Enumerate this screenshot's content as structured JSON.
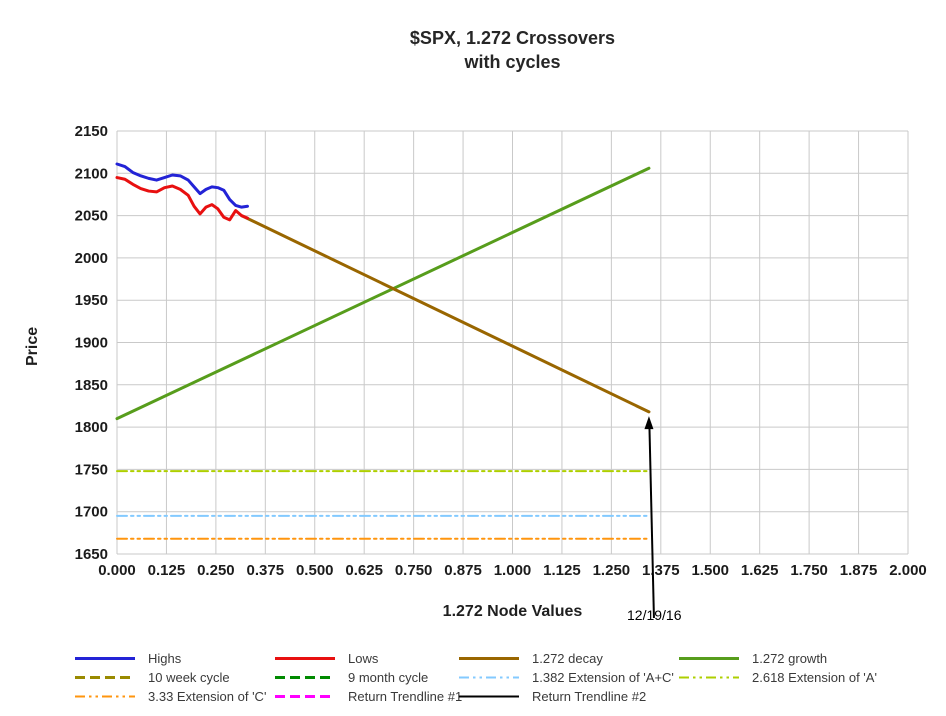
{
  "chart": {
    "title_lines": [
      "$SPX, 1.272 Crossovers",
      "with cycles"
    ],
    "x_axis_title": "1.272 Node Values",
    "y_axis_title": "Price"
  },
  "chart_data": {
    "type": "line",
    "title": "$SPX, 1.272 Crossovers with cycles",
    "xlabel": "1.272 Node Values",
    "ylabel": "Price",
    "xlim": [
      0.0,
      2.0
    ],
    "ylim": [
      1650,
      2150
    ],
    "grid": true,
    "legend_position": "bottom",
    "x_ticks": [
      "0.000",
      "0.125",
      "0.250",
      "0.375",
      "0.500",
      "0.625",
      "0.750",
      "0.875",
      "1.000",
      "1.125",
      "1.250",
      "1.375",
      "1.500",
      "1.625",
      "1.750",
      "1.875",
      "2.000"
    ],
    "y_ticks": [
      1650,
      1700,
      1750,
      1800,
      1850,
      1900,
      1950,
      2000,
      2050,
      2100,
      2150
    ],
    "series": [
      {
        "name": "Highs",
        "color": "#2323d6",
        "width": 3,
        "dash": "solid",
        "points": [
          [
            0.0,
            2111
          ],
          [
            0.02,
            2108
          ],
          [
            0.04,
            2101
          ],
          [
            0.06,
            2097
          ],
          [
            0.08,
            2094
          ],
          [
            0.1,
            2092
          ],
          [
            0.12,
            2095
          ],
          [
            0.14,
            2098
          ],
          [
            0.16,
            2097
          ],
          [
            0.18,
            2092
          ],
          [
            0.195,
            2084
          ],
          [
            0.21,
            2076
          ],
          [
            0.225,
            2081
          ],
          [
            0.24,
            2084
          ],
          [
            0.255,
            2083
          ],
          [
            0.27,
            2080
          ],
          [
            0.285,
            2069
          ],
          [
            0.3,
            2062
          ],
          [
            0.315,
            2060
          ],
          [
            0.33,
            2061
          ]
        ]
      },
      {
        "name": "Lows",
        "color": "#e81010",
        "width": 3,
        "dash": "solid",
        "points": [
          [
            0.0,
            2095
          ],
          [
            0.02,
            2093
          ],
          [
            0.04,
            2087
          ],
          [
            0.06,
            2082
          ],
          [
            0.08,
            2079
          ],
          [
            0.1,
            2078
          ],
          [
            0.12,
            2083
          ],
          [
            0.14,
            2085
          ],
          [
            0.16,
            2081
          ],
          [
            0.18,
            2074
          ],
          [
            0.195,
            2061
          ],
          [
            0.21,
            2052
          ],
          [
            0.225,
            2060
          ],
          [
            0.24,
            2063
          ],
          [
            0.255,
            2058
          ],
          [
            0.27,
            2048
          ],
          [
            0.285,
            2045
          ],
          [
            0.3,
            2056
          ],
          [
            0.315,
            2050
          ],
          [
            0.33,
            2047
          ]
        ]
      },
      {
        "name": "1.272 decay",
        "color": "#996600",
        "width": 3,
        "dash": "solid",
        "points": [
          [
            0.315,
            2050
          ],
          [
            1.345,
            1818
          ]
        ]
      },
      {
        "name": "1.272 growth",
        "color": "#579d1c",
        "width": 3,
        "dash": "solid",
        "points": [
          [
            0.0,
            1810
          ],
          [
            1.345,
            2106
          ]
        ]
      },
      {
        "name": "10 week cycle",
        "color": "#998a00",
        "width": 3,
        "dash": "dashed",
        "points": []
      },
      {
        "name": "9 month cycle",
        "color": "#008a00",
        "width": 3,
        "dash": "dashed",
        "points": []
      },
      {
        "name": "1.382 Extension of 'A+C'",
        "color": "#83caff",
        "width": 2,
        "dash": "dash-dot-dot",
        "points": [
          [
            0.0,
            1695
          ],
          [
            1.345,
            1695
          ]
        ]
      },
      {
        "name": "2.618 Extension of 'A'",
        "color": "#aecf00",
        "width": 2,
        "dash": "dash-dot-dot",
        "points": [
          [
            0.0,
            1748
          ],
          [
            1.345,
            1748
          ]
        ]
      },
      {
        "name": "3.33 Extension of 'C'",
        "color": "#ff950e",
        "width": 2,
        "dash": "dash-dot-dot",
        "points": [
          [
            0.0,
            1668
          ],
          [
            1.345,
            1668
          ]
        ]
      },
      {
        "name": "Return Trendline #1",
        "color": "#ff00ff",
        "width": 3,
        "dash": "dashed",
        "points": []
      },
      {
        "name": "Return Trendline #2",
        "color": "#000000",
        "width": 2,
        "dash": "solid",
        "points": []
      }
    ],
    "annotation": {
      "text": "12/19/16",
      "x": 1.345,
      "y": 1813
    }
  },
  "style": {
    "grid_color": "#c9c9c9",
    "tick_label_color": "#1b1b1b",
    "arrow_color": "#000000"
  }
}
